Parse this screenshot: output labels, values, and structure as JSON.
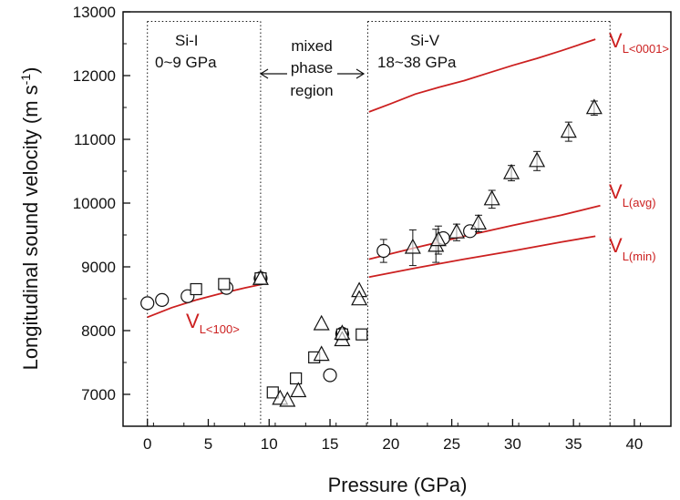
{
  "chart_data": {
    "type": "scatter",
    "xlabel": "Pressure (GPa)",
    "ylabel_main": "Longitudinal sound velocity  (m s",
    "ylabel_sup": "-1",
    "ylabel_close": ")",
    "xlim": [
      -2,
      43
    ],
    "ylim": [
      6500,
      13000
    ],
    "xticks": [
      0,
      5,
      10,
      15,
      20,
      25,
      30,
      35,
      40
    ],
    "yticks": [
      7000,
      8000,
      9000,
      10000,
      11000,
      12000,
      13000
    ],
    "grid": false,
    "boundaries": [
      0,
      9.3,
      18.1,
      38.0
    ],
    "annotations": {
      "si1_name": "Si-I",
      "si1_range": "0~9 GPa",
      "mixed_1": "mixed",
      "mixed_2": "phase",
      "mixed_3": "region",
      "si5_name": "Si-V",
      "si5_range": "18~38 GPa"
    },
    "curve_labels": {
      "v100": {
        "main": "V",
        "sub": "L<100>"
      },
      "v0001": {
        "main": "V",
        "sub": "L<0001>"
      },
      "vavg": {
        "main": "V",
        "sub": "L(avg)"
      },
      "vmin": {
        "main": "V",
        "sub": "L(min)"
      }
    },
    "lines": [
      {
        "id": "v100",
        "color": "#cc2020",
        "x": [
          0,
          2,
          4,
          6,
          8,
          9.5
        ],
        "y": [
          8210,
          8360,
          8480,
          8580,
          8670,
          8730
        ]
      },
      {
        "id": "v0001",
        "color": "#cc2020",
        "x": [
          18.2,
          20,
          22,
          24,
          26,
          28,
          30,
          32,
          34,
          36.8
        ],
        "y": [
          11430,
          11560,
          11710,
          11820,
          11920,
          12040,
          12160,
          12270,
          12390,
          12570
        ]
      },
      {
        "id": "vavg",
        "color": "#cc2020",
        "x": [
          18.2,
          22,
          26,
          30,
          34,
          37.2
        ],
        "y": [
          9120,
          9300,
          9480,
          9650,
          9810,
          9960
        ]
      },
      {
        "id": "vmin",
        "color": "#cc2020",
        "x": [
          18.2,
          22,
          26,
          30,
          34,
          36.8
        ],
        "y": [
          8840,
          8980,
          9120,
          9250,
          9390,
          9480
        ]
      }
    ],
    "series": [
      {
        "marker": "circle",
        "points": [
          {
            "x": 0,
            "y": 8430
          },
          {
            "x": 1.2,
            "y": 8480
          },
          {
            "x": 3.3,
            "y": 8540
          },
          {
            "x": 6.5,
            "y": 8670
          },
          {
            "x": 9.3,
            "y": 8820
          },
          {
            "x": 15.0,
            "y": 7300
          },
          {
            "x": 16.0,
            "y": 7950
          },
          {
            "x": 19.4,
            "y": 9250,
            "err": 180
          },
          {
            "x": 24.3,
            "y": 9450
          },
          {
            "x": 26.5,
            "y": 9560
          }
        ]
      },
      {
        "marker": "square",
        "points": [
          {
            "x": 4.0,
            "y": 8650
          },
          {
            "x": 6.3,
            "y": 8730
          },
          {
            "x": 9.3,
            "y": 8820
          },
          {
            "x": 10.3,
            "y": 7030
          },
          {
            "x": 12.2,
            "y": 7250
          },
          {
            "x": 13.7,
            "y": 7580
          },
          {
            "x": 16.0,
            "y": 7940
          },
          {
            "x": 17.6,
            "y": 7940
          }
        ]
      },
      {
        "marker": "triangle",
        "points": [
          {
            "x": 9.3,
            "y": 8810
          },
          {
            "x": 10.9,
            "y": 6930
          },
          {
            "x": 11.5,
            "y": 6900
          },
          {
            "x": 12.4,
            "y": 7050
          },
          {
            "x": 14.3,
            "y": 8100
          },
          {
            "x": 14.3,
            "y": 7620
          },
          {
            "x": 16.0,
            "y": 7850
          },
          {
            "x": 16.0,
            "y": 7950
          },
          {
            "x": 17.4,
            "y": 8620
          },
          {
            "x": 17.4,
            "y": 8490
          },
          {
            "x": 21.8,
            "y": 9300,
            "err": 280
          },
          {
            "x": 23.7,
            "y": 9330,
            "err": 260
          },
          {
            "x": 23.9,
            "y": 9420,
            "err": 220
          },
          {
            "x": 25.4,
            "y": 9540,
            "err": 130
          },
          {
            "x": 27.2,
            "y": 9680,
            "err": 130
          },
          {
            "x": 28.3,
            "y": 10060,
            "err": 140
          },
          {
            "x": 29.9,
            "y": 10470,
            "err": 120
          },
          {
            "x": 32.0,
            "y": 10660,
            "err": 150
          },
          {
            "x": 34.6,
            "y": 11120,
            "err": 150
          },
          {
            "x": 36.7,
            "y": 11490,
            "err": 110
          }
        ]
      }
    ]
  }
}
